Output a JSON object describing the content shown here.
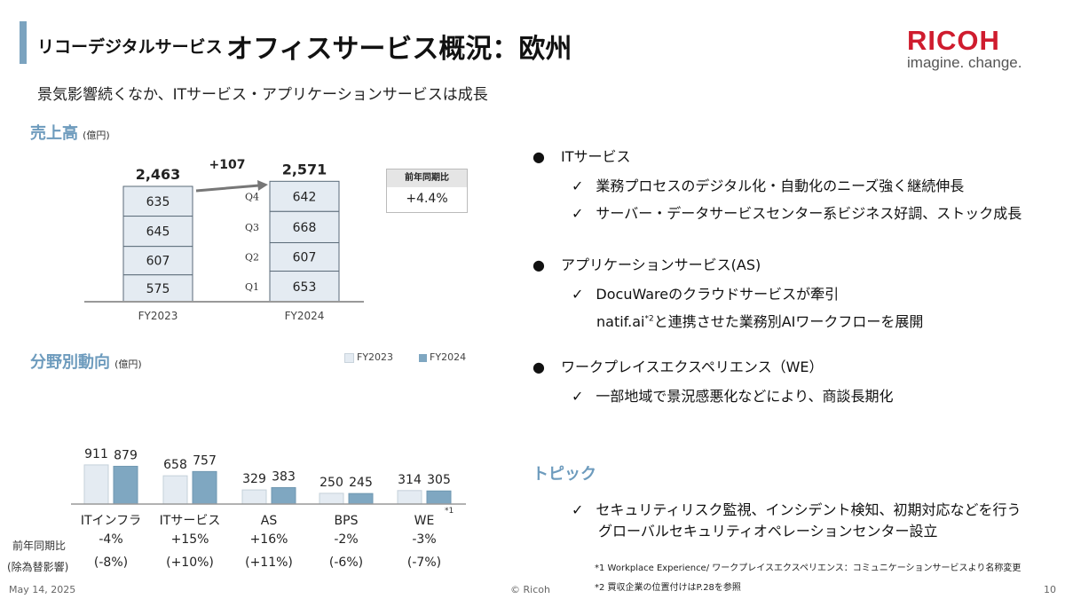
{
  "header": {
    "title_small": "リコーデジタルサービス",
    "title_big": "オフィスサービス概況：欧州",
    "logo_text": "RICOH",
    "tagline": "imagine. change.",
    "subtitle": "景気影響続くなか、ITサービス・アプリケーションサービスは成長"
  },
  "colors": {
    "fy2023": "#e4ebf2",
    "fy2024": "#7fa7c1",
    "accent": "#6d9bbd",
    "brand": "#cf1c2e"
  },
  "chart_data": [
    {
      "type": "bar",
      "stacked": true,
      "title": "売上高",
      "unit": "(億円)",
      "categories": [
        "FY2023",
        "FY2024"
      ],
      "totals": [
        2463,
        2571
      ],
      "total_labels": [
        "2,463",
        "2,571"
      ],
      "diff_label": "+107",
      "series": [
        {
          "name": "Q1",
          "values": [
            575,
            653
          ]
        },
        {
          "name": "Q2",
          "values": [
            607,
            607
          ]
        },
        {
          "name": "Q3",
          "values": [
            645,
            668
          ]
        },
        {
          "name": "Q4",
          "values": [
            635,
            642
          ]
        }
      ],
      "yoy": {
        "label": "前年同期比",
        "value": "+4.4%"
      }
    },
    {
      "type": "bar",
      "title": "分野別動向",
      "unit": "(億円)",
      "legend": [
        "FY2023",
        "FY2024"
      ],
      "legend_position": "top-right",
      "categories": [
        "ITインフラ",
        "ITサービス",
        "AS",
        "BPS",
        "WE"
      ],
      "category_note": [
        "",
        "",
        "",
        "",
        "*1"
      ],
      "series": [
        {
          "name": "FY2023",
          "values": [
            911,
            658,
            329,
            250,
            314
          ]
        },
        {
          "name": "FY2024",
          "values": [
            879,
            757,
            383,
            245,
            305
          ]
        }
      ],
      "yoy_label": "前年同期比",
      "yoy": [
        "-4%",
        "+15%",
        "+16%",
        "-2%",
        "-3%"
      ],
      "fx_label": "(除為替影響)",
      "yoy_fx": [
        "(-8%)",
        "(+10%)",
        "(+11%)",
        "(-6%)",
        "(-7%)"
      ]
    }
  ],
  "bullets": [
    {
      "title": "ITサービス",
      "checks": [
        "業務プロセスのデジタル化・自動化のニーズ強く継続伸長",
        "サーバー・データサービスセンター系ビジネス好調、ストック成長"
      ]
    },
    {
      "title": "アプリケーションサービス(AS)",
      "checks": [
        "DocuWareのクラウドサービスが牽引"
      ],
      "extra_pre": "natif.ai",
      "extra_sup": "*2",
      "extra_post": "と連携させた業務別AIワークフローを展開"
    },
    {
      "title": "ワークプレイスエクスペリエンス（WE）",
      "checks": [
        "一部地域で景況感悪化などにより、商談長期化"
      ]
    }
  ],
  "topic": {
    "title": "トピック",
    "line1": "セキュリティリスク監視、インシデント検知、初期対応などを行う",
    "line2": "グローバルセキュリティオペレーションセンター設立"
  },
  "notes": {
    "n1": "*1 Workplace Experience/ ワークプレイスエクスペリエンス：コミュニケーションサービスより名称変更",
    "n2": "*2 買収企業の位置付けはP.28を参照"
  },
  "footer": {
    "date": "May 14, 2025",
    "copyright": "© Ricoh",
    "page": "10"
  }
}
